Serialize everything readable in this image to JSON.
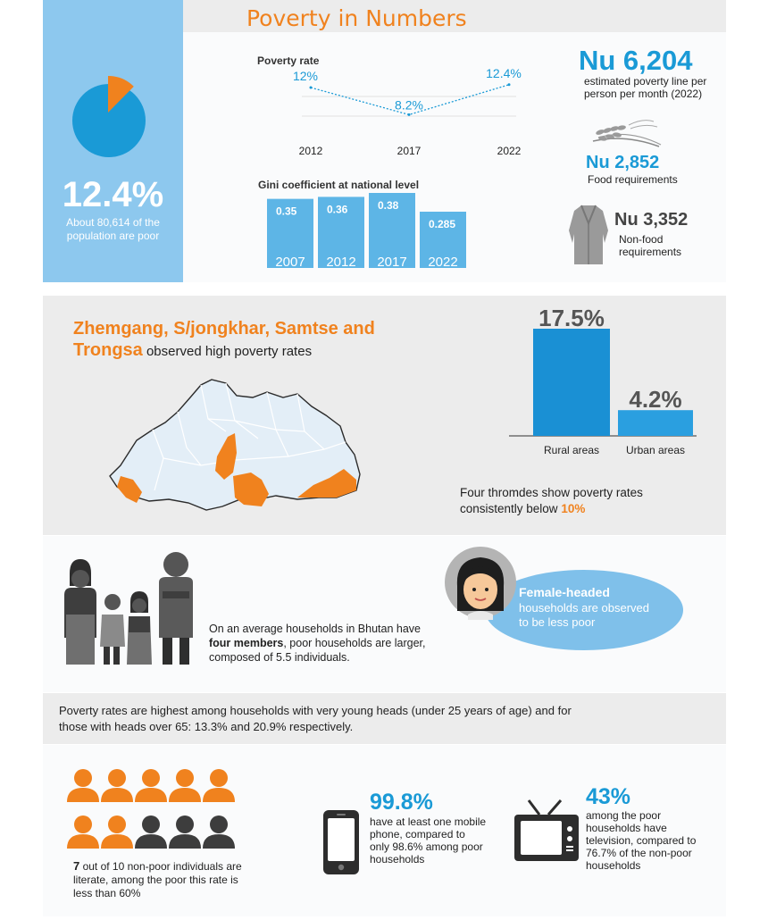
{
  "colors": {
    "orange": "#f0821e",
    "blue": "#1a9ad6",
    "light_blue": "#5db5e6",
    "panel_blue": "#8dc8ee",
    "gray_panel": "#ececec",
    "dark_gray": "#4a4a4a"
  },
  "header": {
    "title": "Poverty in Numbers"
  },
  "summary": {
    "pie_pct": 12.4,
    "headline": "12.4%",
    "caption_line1": "About 80,614 of the",
    "caption_line2": "population are poor"
  },
  "poverty_rate": {
    "title": "Poverty rate",
    "chart_data": {
      "type": "line",
      "title": "Poverty rate",
      "x": [
        "2012",
        "2017",
        "2022"
      ],
      "values": [
        12,
        8.2,
        12.4
      ],
      "labels": [
        "12%",
        "8.2%",
        "12.4%"
      ]
    }
  },
  "gini": {
    "title": "Gini coefficient at national level",
    "chart_data": {
      "type": "bar",
      "title": "Gini coefficient at national level",
      "categories": [
        "2007",
        "2012",
        "2017",
        "2022"
      ],
      "values": [
        0.35,
        0.36,
        0.38,
        0.285
      ],
      "labels": [
        "0.35",
        "0.36",
        "0.38",
        "0.285"
      ]
    }
  },
  "poverty_line": {
    "value": "Nu 6,204",
    "caption_line1": "estimated poverty line per",
    "caption_line2": "person per month (2022)",
    "food_value": "Nu 2,852",
    "food_label": "Food requirements",
    "nonfood_value": "Nu 3,352",
    "nonfood_label_line1": "Non-food",
    "nonfood_label_line2": "requirements",
    "icons": [
      "wheat-icon",
      "clothing-icon"
    ]
  },
  "regions": {
    "headline_orange": "Zhemgang, S/jongkhar, Samtse and",
    "headline_orange_2": "Trongsa",
    "headline_rest": " observed high poverty rates",
    "thromdes_text": "Four thromdes show poverty rates",
    "thromdes_text_2": "consistently below ",
    "thromdes_pct": "10%",
    "chart_data": {
      "type": "bar",
      "categories": [
        "Rural areas",
        "Urban areas"
      ],
      "values": [
        17.5,
        4.2
      ],
      "labels": [
        "17.5%",
        "4.2%"
      ]
    }
  },
  "households": {
    "text_line1": "On an average households in Bhutan have",
    "text_bold": "four members",
    "text_line2_rest": ", poor households are larger,",
    "text_line3": "composed of 5.5 individuals.",
    "female_title": "Female-headed",
    "female_line1": "households are observed",
    "female_line2": "to be less poor"
  },
  "heads": {
    "text_line1": "Poverty rates are highest among households with very young heads (under 25 years of age) and for",
    "text_line2": "those with heads over 65: 13.3% and 20.9% respectively."
  },
  "literacy": {
    "count_bold": "7",
    "text_line1": " out of 10 non-poor individuals are",
    "text_line2": "literate, among the poor this rate is",
    "text_line3": "less than 60%",
    "people_total": 10,
    "people_highlighted": 7
  },
  "mobile": {
    "value": "99.8%",
    "line1": "have at least one mobile",
    "line2": "phone, compared to",
    "line3": "only 98.6% among poor",
    "line4": "households"
  },
  "tv": {
    "value": "43%",
    "line1": "among the poor",
    "line2": "households have",
    "line3": "television, compared to",
    "line4": "76.7% of the non-poor",
    "line5": "households"
  }
}
